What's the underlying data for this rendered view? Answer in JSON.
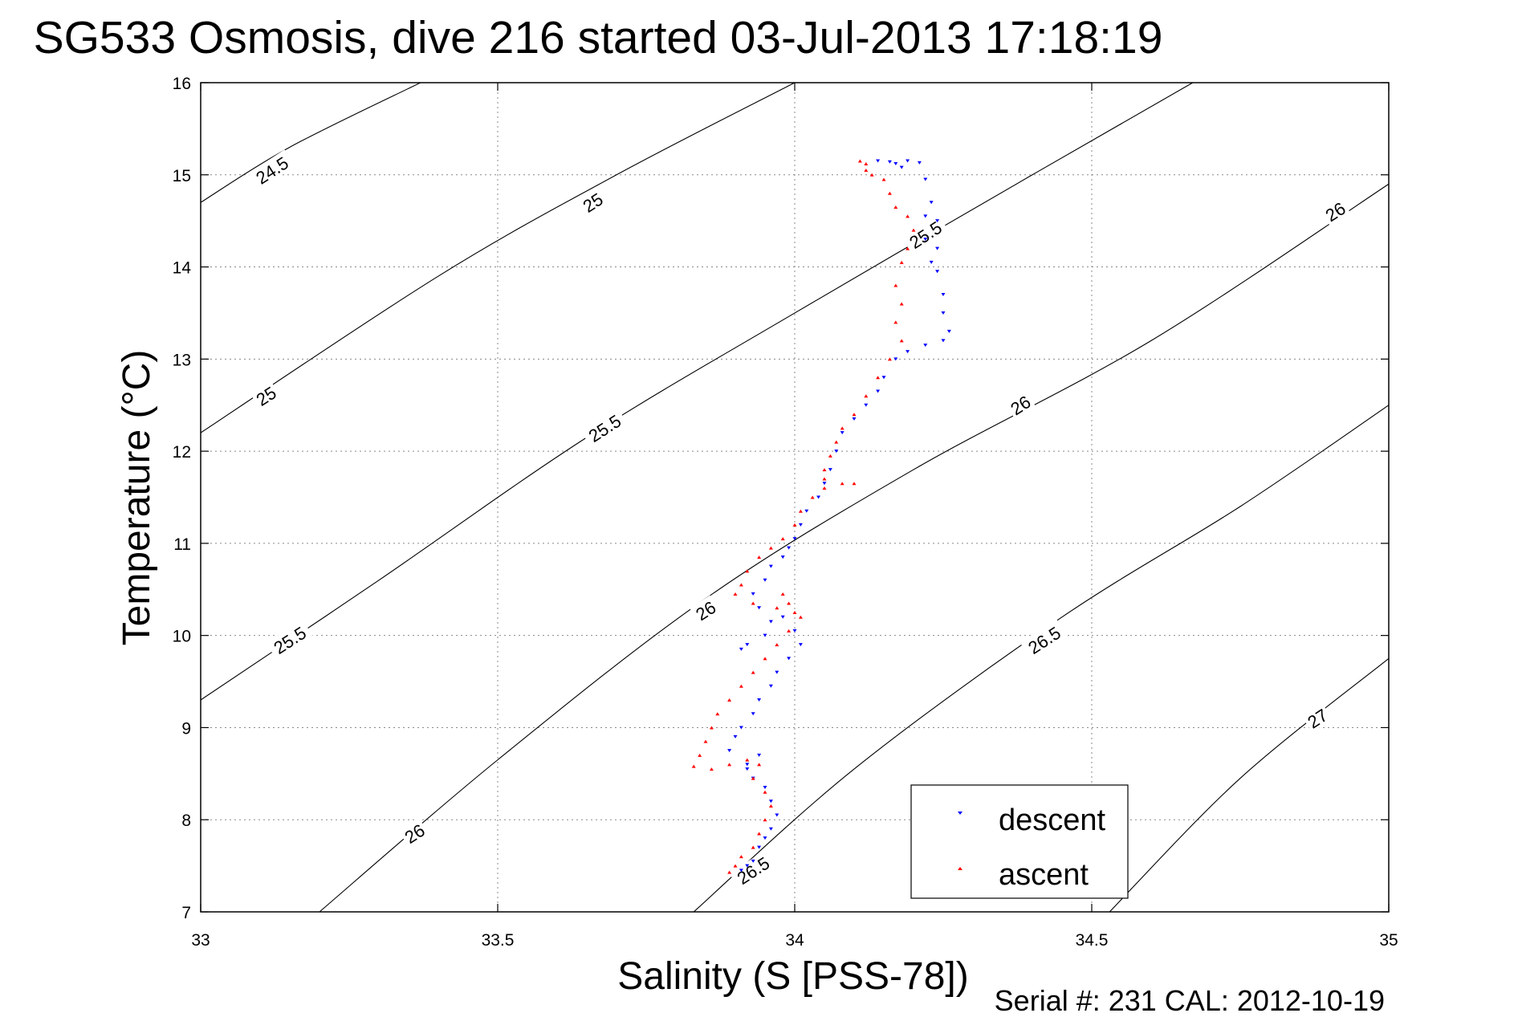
{
  "chart_data": {
    "type": "scatter",
    "title": "SG533 Osmosis, dive 216 started 03-Jul-2013 17:18:19",
    "xlabel": "Salinity (S [PSS-78])",
    "ylabel": "Temperature (°C)",
    "xlim": [
      33,
      35
    ],
    "ylim": [
      7,
      16
    ],
    "xticks": [
      33,
      33.5,
      34,
      34.5,
      35
    ],
    "xtick_labels": [
      "33",
      "33.5",
      "34",
      "34.5",
      "35"
    ],
    "yticks": [
      7,
      8,
      9,
      10,
      11,
      12,
      13,
      14,
      15,
      16
    ],
    "ytick_labels": [
      "7",
      "8",
      "9",
      "10",
      "11",
      "12",
      "13",
      "14",
      "15",
      "16"
    ],
    "grid": true,
    "legend_position": "bottom-right",
    "footer": "Serial #: 231  CAL: 2012-10-19",
    "density_contours": [
      {
        "level": "24.5",
        "points": [
          [
            33,
            14.7
          ],
          [
            33.15,
            15.3
          ],
          [
            33.37,
            16
          ]
        ]
      },
      {
        "level": "25",
        "points": [
          [
            33,
            12.2
          ],
          [
            33.4,
            13.9
          ],
          [
            33.7,
            15.0
          ],
          [
            34.0,
            16.0
          ]
        ]
      },
      {
        "level": "25.5",
        "points": [
          [
            33,
            9.3
          ],
          [
            33.3,
            10.6
          ],
          [
            33.65,
            12.15
          ],
          [
            34.0,
            13.5
          ],
          [
            34.4,
            15.0
          ],
          [
            34.67,
            16.0
          ]
        ]
      },
      {
        "level": "26",
        "points": [
          [
            33.2,
            7.0
          ],
          [
            33.5,
            8.65
          ],
          [
            33.85,
            10.4
          ],
          [
            34.2,
            11.8
          ],
          [
            34.6,
            13.2
          ],
          [
            35,
            14.9
          ]
        ]
      },
      {
        "level": "26.5",
        "points": [
          [
            33.83,
            7.0
          ],
          [
            34.1,
            8.55
          ],
          [
            34.45,
            10.2
          ],
          [
            34.75,
            11.4
          ],
          [
            35,
            12.5
          ]
        ]
      },
      {
        "level": "27",
        "points": [
          [
            34.53,
            7.0
          ],
          [
            34.75,
            8.45
          ],
          [
            35,
            9.75
          ]
        ]
      }
    ],
    "contour_labels": [
      {
        "text": "24.5",
        "x": 33.12,
        "y": 15.05,
        "angle": -33
      },
      {
        "text": "25",
        "x": 33.66,
        "y": 14.7,
        "angle": -33
      },
      {
        "text": "25",
        "x": 33.11,
        "y": 12.6,
        "angle": -33
      },
      {
        "text": "25.5",
        "x": 33.68,
        "y": 12.25,
        "angle": -33
      },
      {
        "text": "25.5",
        "x": 33.15,
        "y": 9.95,
        "angle": -33
      },
      {
        "text": "25.5",
        "x": 34.22,
        "y": 14.35,
        "angle": -33
      },
      {
        "text": "26",
        "x": 34.91,
        "y": 14.6,
        "angle": -33
      },
      {
        "text": "26",
        "x": 34.38,
        "y": 12.5,
        "angle": -33
      },
      {
        "text": "26",
        "x": 33.85,
        "y": 10.27,
        "angle": -33
      },
      {
        "text": "26",
        "x": 33.36,
        "y": 7.85,
        "angle": -33
      },
      {
        "text": "26.5",
        "x": 34.42,
        "y": 9.95,
        "angle": -33
      },
      {
        "text": "26.5",
        "x": 33.93,
        "y": 7.45,
        "angle": -33
      },
      {
        "text": "27",
        "x": 34.88,
        "y": 9.1,
        "angle": -33
      }
    ],
    "series": [
      {
        "name": "descent",
        "color": "#0000ff",
        "marker": "triangle-down",
        "points": [
          [
            34.14,
            15.15
          ],
          [
            34.16,
            15.14
          ],
          [
            34.17,
            15.12
          ],
          [
            34.18,
            15.08
          ],
          [
            34.19,
            15.15
          ],
          [
            34.21,
            15.13
          ],
          [
            34.22,
            14.95
          ],
          [
            34.23,
            14.7
          ],
          [
            34.22,
            14.55
          ],
          [
            34.24,
            14.5
          ],
          [
            34.22,
            14.3
          ],
          [
            34.24,
            14.2
          ],
          [
            34.23,
            14.05
          ],
          [
            34.24,
            13.95
          ],
          [
            34.25,
            13.7
          ],
          [
            34.25,
            13.5
          ],
          [
            34.26,
            13.3
          ],
          [
            34.25,
            13.2
          ],
          [
            34.22,
            13.15
          ],
          [
            34.19,
            13.08
          ],
          [
            34.17,
            13.0
          ],
          [
            34.15,
            12.8
          ],
          [
            34.14,
            12.65
          ],
          [
            34.12,
            12.5
          ],
          [
            34.1,
            12.35
          ],
          [
            34.08,
            12.2
          ],
          [
            34.07,
            12.0
          ],
          [
            34.06,
            11.8
          ],
          [
            34.05,
            11.65
          ],
          [
            34.04,
            11.5
          ],
          [
            34.02,
            11.35
          ],
          [
            34.01,
            11.2
          ],
          [
            34.0,
            11.05
          ],
          [
            33.99,
            10.95
          ],
          [
            33.98,
            10.85
          ],
          [
            33.96,
            10.75
          ],
          [
            33.95,
            10.6
          ],
          [
            33.93,
            10.45
          ],
          [
            33.94,
            10.3
          ],
          [
            33.96,
            10.15
          ],
          [
            33.95,
            10.0
          ],
          [
            33.92,
            9.9
          ],
          [
            33.91,
            9.85
          ],
          [
            33.98,
            10.2
          ],
          [
            34.0,
            10.05
          ],
          [
            34.01,
            9.9
          ],
          [
            33.99,
            9.75
          ],
          [
            33.97,
            9.6
          ],
          [
            33.96,
            9.45
          ],
          [
            33.94,
            9.3
          ],
          [
            33.93,
            9.15
          ],
          [
            33.91,
            9.0
          ],
          [
            33.9,
            8.9
          ],
          [
            33.89,
            8.75
          ],
          [
            33.92,
            8.6
          ],
          [
            33.94,
            8.7
          ],
          [
            33.92,
            8.55
          ],
          [
            33.93,
            8.45
          ],
          [
            33.95,
            8.35
          ],
          [
            33.96,
            8.2
          ],
          [
            33.97,
            8.05
          ],
          [
            33.96,
            7.9
          ],
          [
            33.95,
            7.8
          ],
          [
            33.94,
            7.7
          ],
          [
            33.93,
            7.55
          ],
          [
            33.92,
            7.5
          ],
          [
            33.91,
            7.45
          ]
        ]
      },
      {
        "name": "ascent",
        "color": "#ff0000",
        "marker": "triangle-up",
        "points": [
          [
            34.11,
            15.15
          ],
          [
            34.12,
            15.12
          ],
          [
            34.12,
            15.05
          ],
          [
            34.13,
            15.0
          ],
          [
            34.15,
            14.95
          ],
          [
            34.16,
            14.8
          ],
          [
            34.17,
            14.65
          ],
          [
            34.19,
            14.55
          ],
          [
            34.2,
            14.4
          ],
          [
            34.19,
            14.2
          ],
          [
            34.18,
            14.05
          ],
          [
            34.17,
            13.8
          ],
          [
            34.18,
            13.6
          ],
          [
            34.17,
            13.4
          ],
          [
            34.18,
            13.2
          ],
          [
            34.16,
            13.0
          ],
          [
            34.14,
            12.8
          ],
          [
            34.12,
            12.6
          ],
          [
            34.1,
            12.4
          ],
          [
            34.08,
            12.25
          ],
          [
            34.07,
            12.1
          ],
          [
            34.06,
            11.95
          ],
          [
            34.05,
            11.8
          ],
          [
            34.05,
            11.7
          ],
          [
            34.08,
            11.65
          ],
          [
            34.1,
            11.65
          ],
          [
            34.05,
            11.6
          ],
          [
            34.03,
            11.5
          ],
          [
            34.01,
            11.35
          ],
          [
            34.0,
            11.2
          ],
          [
            33.98,
            11.05
          ],
          [
            33.96,
            10.95
          ],
          [
            33.94,
            10.85
          ],
          [
            33.92,
            10.7
          ],
          [
            33.91,
            10.55
          ],
          [
            33.9,
            10.45
          ],
          [
            33.93,
            10.35
          ],
          [
            33.97,
            10.3
          ],
          [
            33.98,
            10.45
          ],
          [
            33.99,
            10.35
          ],
          [
            34.0,
            10.25
          ],
          [
            34.01,
            10.2
          ],
          [
            33.99,
            10.05
          ],
          [
            33.97,
            9.9
          ],
          [
            33.95,
            9.75
          ],
          [
            33.93,
            9.6
          ],
          [
            33.91,
            9.45
          ],
          [
            33.89,
            9.3
          ],
          [
            33.87,
            9.15
          ],
          [
            33.86,
            9.0
          ],
          [
            33.85,
            8.85
          ],
          [
            33.84,
            8.7
          ],
          [
            33.83,
            8.58
          ],
          [
            33.86,
            8.55
          ],
          [
            33.89,
            8.6
          ],
          [
            33.92,
            8.65
          ],
          [
            33.94,
            8.6
          ],
          [
            33.93,
            8.45
          ],
          [
            33.95,
            8.3
          ],
          [
            33.96,
            8.15
          ],
          [
            33.95,
            8.0
          ],
          [
            33.94,
            7.85
          ],
          [
            33.93,
            7.7
          ],
          [
            33.91,
            7.6
          ],
          [
            33.9,
            7.5
          ],
          [
            33.89,
            7.43
          ]
        ]
      }
    ]
  }
}
